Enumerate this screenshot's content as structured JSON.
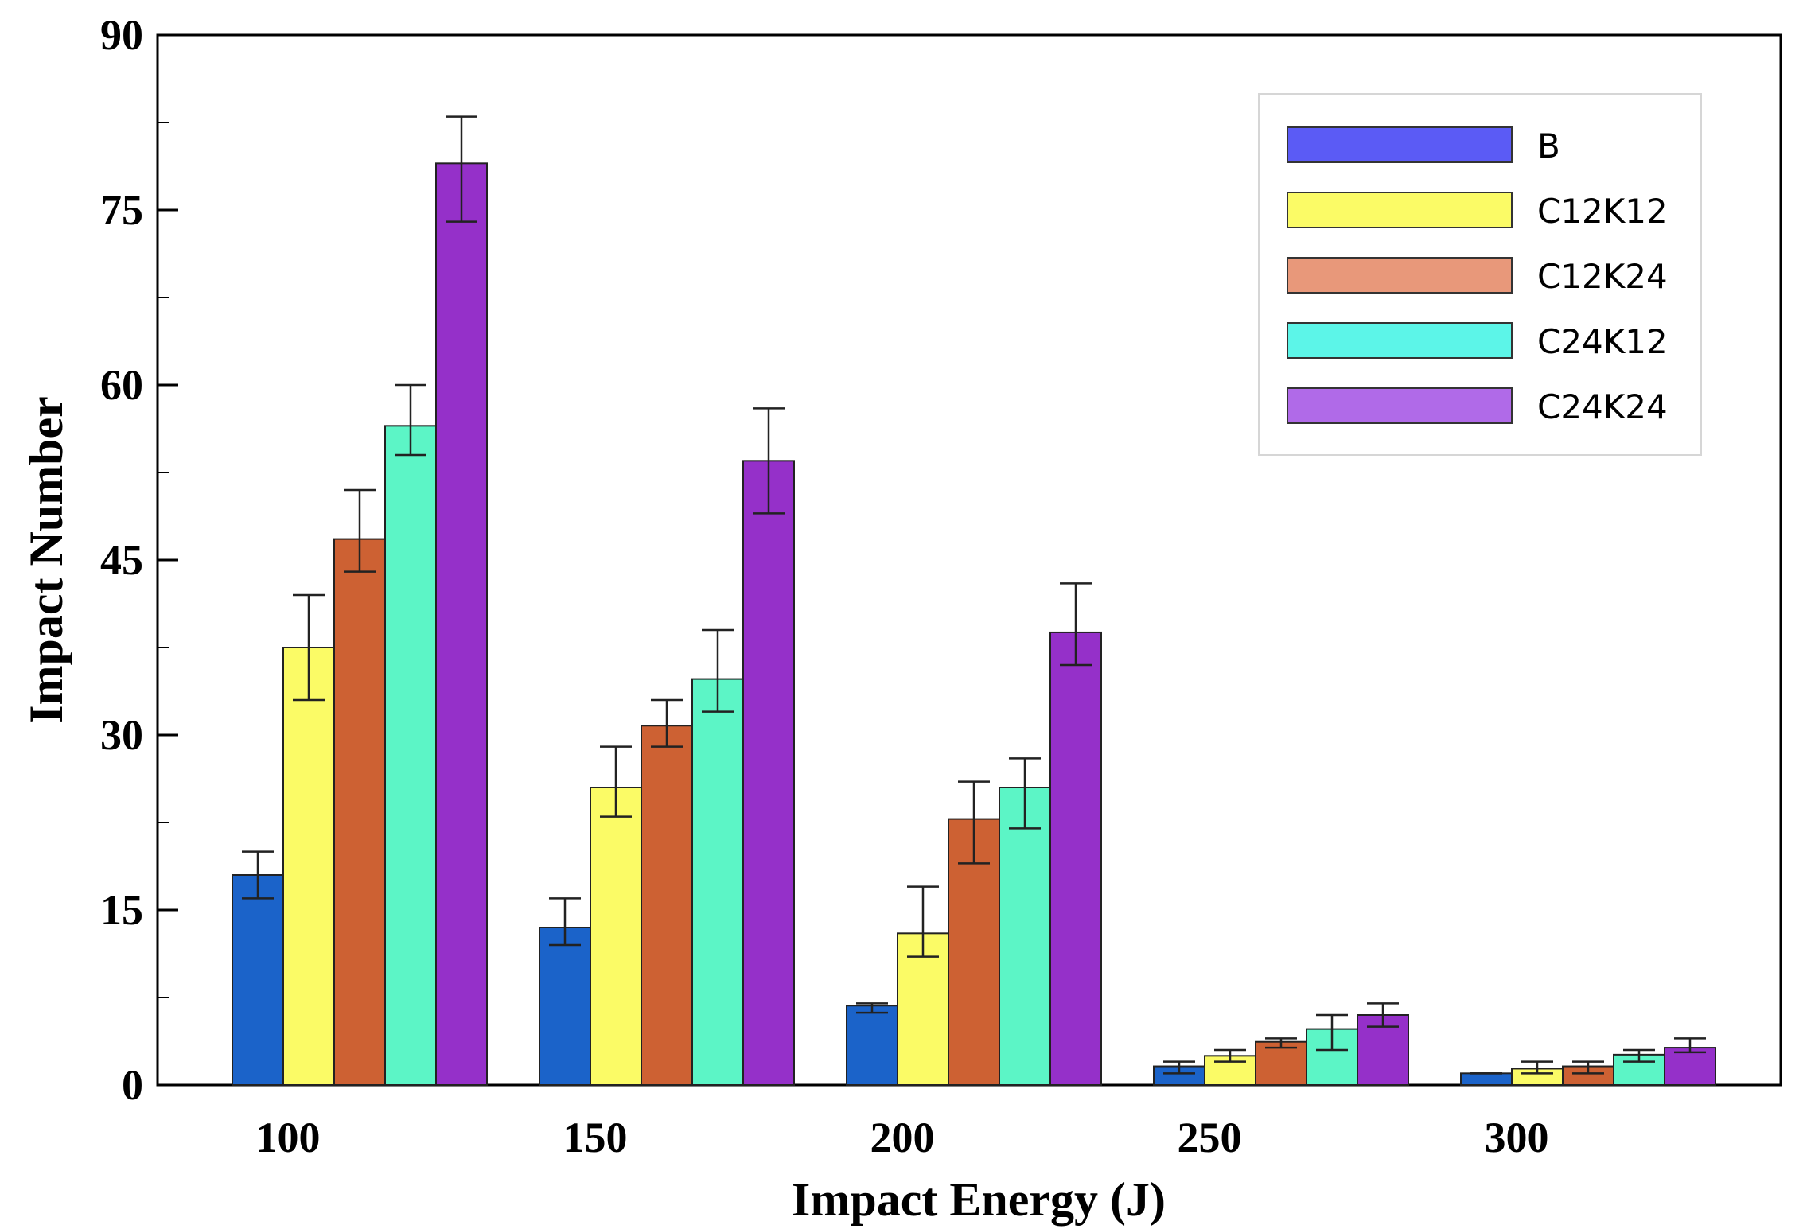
{
  "chart_data": {
    "type": "bar",
    "title": "",
    "xlabel": "Impact Energy (J)",
    "ylabel": "Impact Number",
    "categories": [
      "100",
      "150",
      "200",
      "250",
      "300"
    ],
    "ylim": [
      0,
      90
    ],
    "yticks": [
      "0",
      "15",
      "30",
      "45",
      "60",
      "75",
      "90"
    ],
    "legend_position": "top-right",
    "grid": false,
    "error_bars": true,
    "series": [
      {
        "name": "B",
        "color": "#1b63c9",
        "legend_color": "#5b5bf5",
        "values": [
          18,
          13.5,
          6.8,
          1.6,
          1.0
        ],
        "err_low": [
          16,
          12,
          6.2,
          1.0,
          1.0
        ],
        "err_high": [
          20,
          16,
          7.0,
          2.0,
          1.0
        ]
      },
      {
        "name": "C12K12",
        "color": "#fbfb66",
        "legend_color": "#fbfb66",
        "values": [
          37.5,
          25.5,
          13,
          2.5,
          1.4
        ],
        "err_low": [
          33,
          23,
          11,
          2.0,
          1.0
        ],
        "err_high": [
          42,
          29,
          17,
          3.0,
          2.0
        ]
      },
      {
        "name": "C12K24",
        "color": "#cd6133",
        "legend_color": "#e8987a",
        "values": [
          46.8,
          30.8,
          22.8,
          3.7,
          1.6
        ],
        "err_low": [
          44,
          29,
          19,
          3.2,
          1.0
        ],
        "err_high": [
          51,
          33,
          26,
          4.0,
          2.0
        ]
      },
      {
        "name": "C24K12",
        "color": "#5cf5c6",
        "legend_color": "#5cf5e8",
        "values": [
          56.5,
          34.8,
          25.5,
          4.8,
          2.6
        ],
        "err_low": [
          54,
          32,
          22,
          3.0,
          2.0
        ],
        "err_high": [
          60,
          39,
          28,
          6.0,
          3.0
        ]
      },
      {
        "name": "C24K24",
        "color": "#9530c9",
        "legend_color": "#b06ae8",
        "values": [
          79,
          53.5,
          38.8,
          6.0,
          3.2
        ],
        "err_low": [
          74,
          49,
          36,
          5.0,
          2.8
        ],
        "err_high": [
          83,
          58,
          43,
          7.0,
          4.0
        ]
      }
    ]
  }
}
